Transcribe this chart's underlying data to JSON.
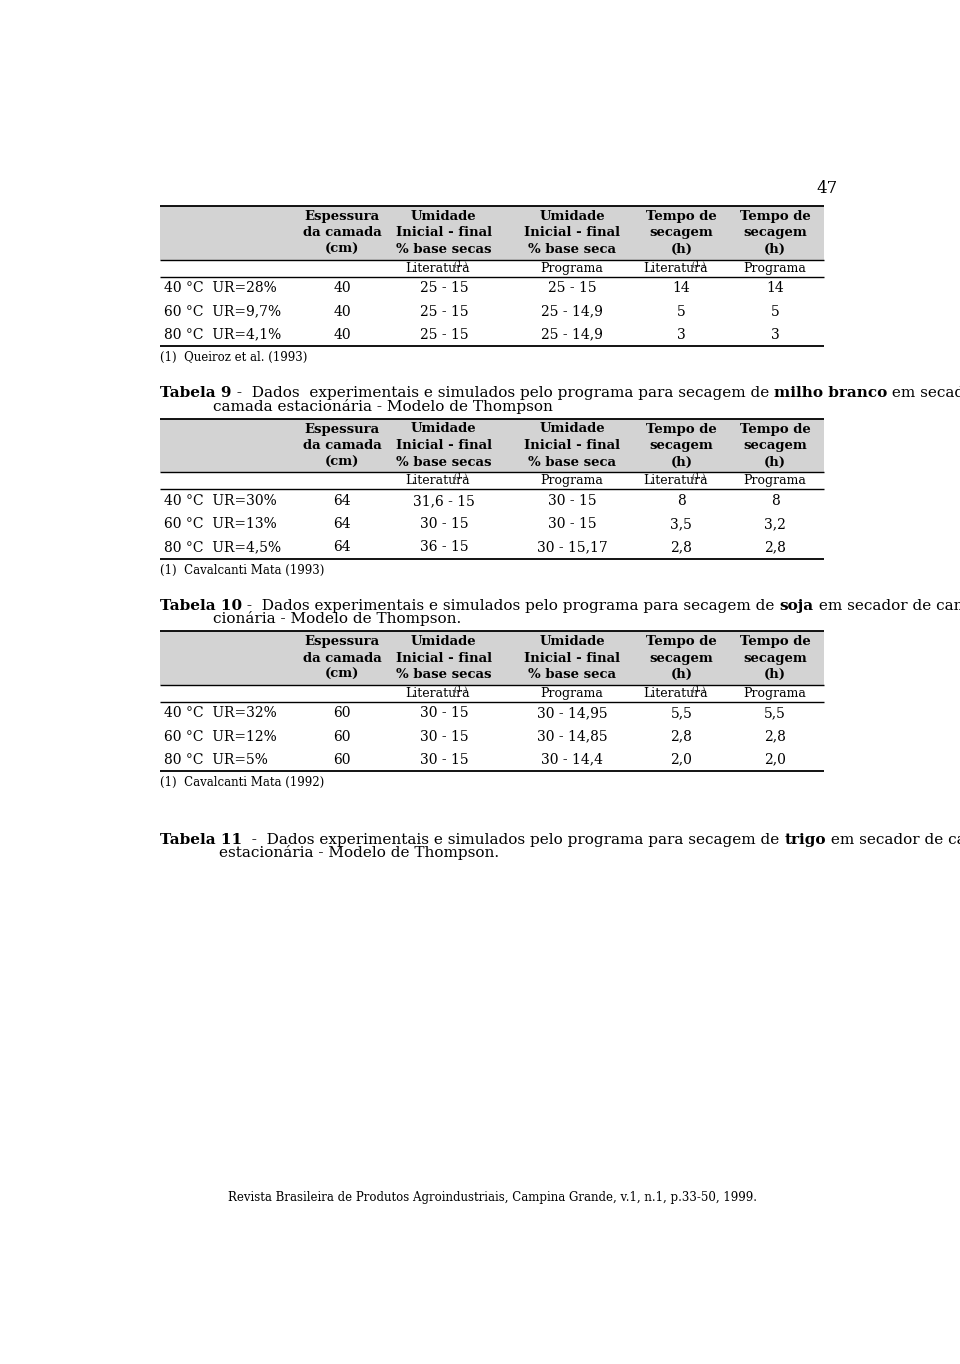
{
  "page_number": "47",
  "background_color": "#ffffff",
  "header_bg": "#d3d3d3",
  "line_color": "#000000",
  "table8": {
    "rows": [
      [
        "40 °C  UR=28%",
        "40",
        "25 - 15",
        "25 - 15",
        "14",
        "14"
      ],
      [
        "60 °C  UR=9,7%",
        "40",
        "25 - 15",
        "25 - 14,9",
        "5",
        "5"
      ],
      [
        "80 °C  UR=4,1%",
        "40",
        "25 - 15",
        "25 - 14,9",
        "3",
        "3"
      ]
    ],
    "footnote": "(1)  Queiroz et al. (1993)"
  },
  "table9": {
    "rows": [
      [
        "40 °C  UR=30%",
        "64",
        "31,6 - 15",
        "30 - 15",
        "8",
        "8"
      ],
      [
        "60 °C  UR=13%",
        "64",
        "30 - 15",
        "30 - 15",
        "3,5",
        "3,2"
      ],
      [
        "80 °C  UR=4,5%",
        "64",
        "36 - 15",
        "30 - 15,17",
        "2,8",
        "2,8"
      ]
    ],
    "footnote": "(1)  Cavalcanti Mata (1993)"
  },
  "table10": {
    "rows": [
      [
        "40 °C  UR=32%",
        "60",
        "30 - 15",
        "30 - 14,95",
        "5,5",
        "5,5"
      ],
      [
        "60 °C  UR=12%",
        "60",
        "30 - 15",
        "30 - 14,85",
        "2,8",
        "2,8"
      ],
      [
        "80 °C  UR=5%",
        "60",
        "30 - 15",
        "30 - 14,4",
        "2,0",
        "2,0"
      ]
    ],
    "footnote": "(1)  Cavalcanti Mata (1992)"
  },
  "col_header_line1": [
    "",
    "Espessura",
    "Umidade",
    "Umidade",
    "Tempo de",
    "Tempo de"
  ],
  "col_header_line2": [
    "",
    "da camada",
    "Inicial - final",
    "Inicial - final",
    "secagem",
    "secagem"
  ],
  "col_header_line3": [
    "",
    "(cm)",
    "% base secas",
    "% base seca",
    "(h)",
    "(h)"
  ],
  "sub_col1": "Literatura",
  "sub_col1_super": "(1 )",
  "sub_col2": "Programa",
  "sub_col3": "Literatura",
  "sub_col3_super": "(1 )",
  "sub_col4": "Programa",
  "footer": "Revista Brasileira de Produtos Agroindustriais, Campina Grande, v.1, n.1, p.33-50, 1999."
}
